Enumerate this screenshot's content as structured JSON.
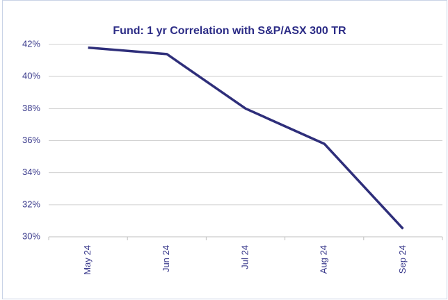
{
  "chart_data": {
    "type": "line",
    "title": "Fund: 1 yr Correlation with S&P/ASX 300 TR",
    "categories": [
      "May 24",
      "Jun 24",
      "Jul 24",
      "Aug 24",
      "Sep 24"
    ],
    "series": [
      {
        "name": "Fund",
        "color": "#2e2e7a",
        "values": [
          41.8,
          41.4,
          38.0,
          35.8,
          30.5
        ]
      }
    ],
    "ylim": [
      30,
      42
    ],
    "yticks": [
      {
        "value": 30,
        "label": "30%"
      },
      {
        "value": 32,
        "label": "32%"
      },
      {
        "value": 34,
        "label": "34%"
      },
      {
        "value": 36,
        "label": "36%"
      },
      {
        "value": 38,
        "label": "38%"
      },
      {
        "value": 40,
        "label": "40%"
      },
      {
        "value": 42,
        "label": "42%"
      }
    ],
    "grid": true
  }
}
